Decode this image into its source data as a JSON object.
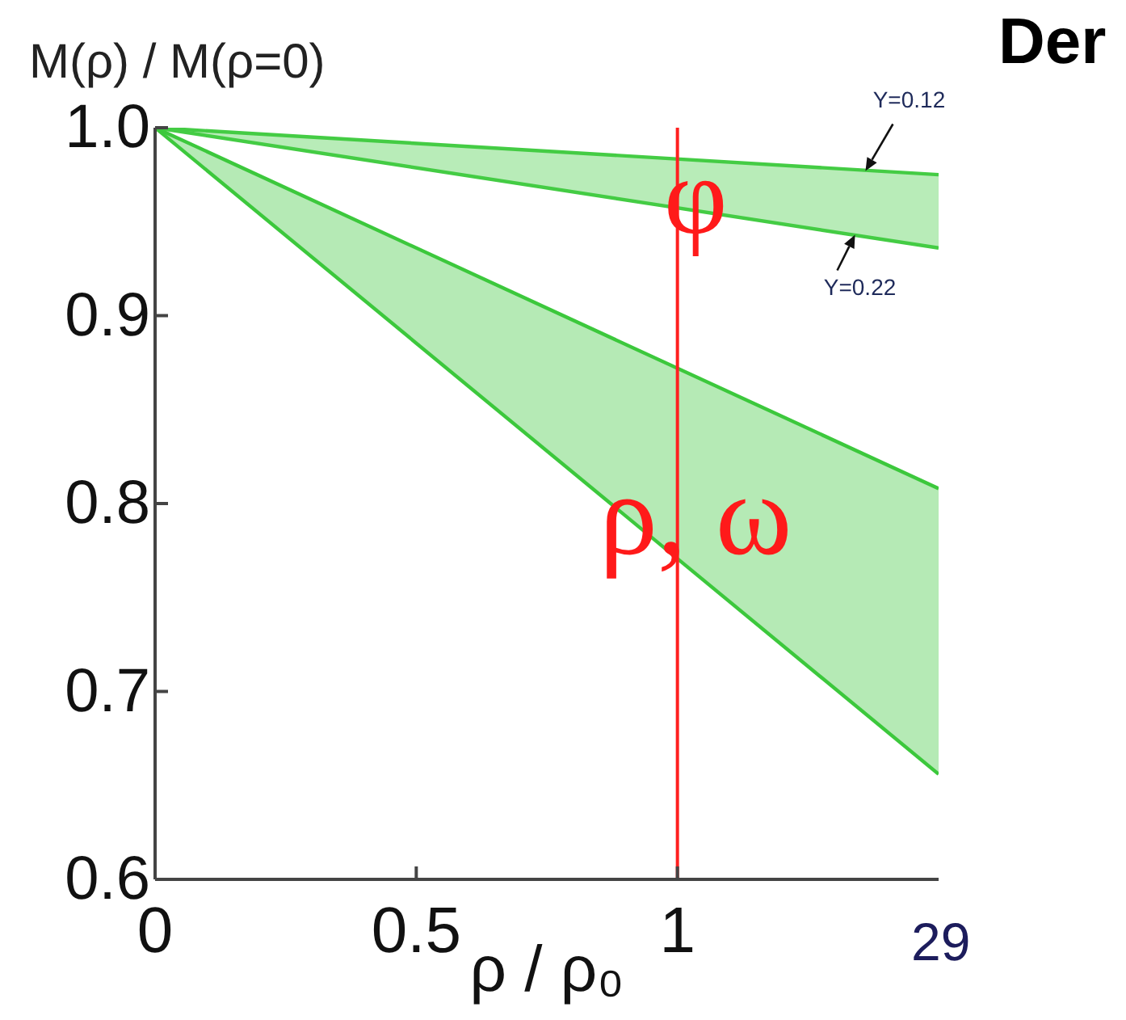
{
  "chart_data": {
    "type": "line",
    "xlabel": "ρ / ρ₀",
    "ylabel": "M(ρ) / M(ρ=0)",
    "x": [
      0,
      1.5
    ],
    "series": [
      {
        "name": "φ",
        "color": "#44cc44",
        "values": [
          1,
          0.975
        ],
        "lower": [
          1,
          0.936
        ],
        "upper": [
          1,
          0.975
        ]
      },
      {
        "color": "#44cc44",
        "values": [
          1,
          0.936
        ]
      },
      {
        "name": "ρ, ω",
        "color": "#3cc83c",
        "values": [
          1,
          0.808
        ],
        "lower": [
          1,
          0.656
        ],
        "upper": [
          1,
          0.808
        ]
      },
      {
        "color": "#3cc83c",
        "values": [
          1,
          0.656
        ]
      }
    ],
    "xlim": [
      0,
      1.5
    ],
    "xticks": [
      0,
      0.5,
      1
    ],
    "ylim": [
      0.6,
      1
    ],
    "yticks": [
      0.6,
      0.7,
      0.8,
      0.9,
      {
        "value": 1,
        "label": "1.0"
      }
    ],
    "ref_lines": [
      {
        "axis": "x",
        "value": 1,
        "color": "#ff2020"
      }
    ],
    "annotations": [
      {
        "text": "Y=0.12",
        "x": 1.36,
        "y": 0.977
      },
      {
        "text": "Y=0.22",
        "x": 1.34,
        "y": 0.943
      },
      "29",
      "Der"
    ]
  }
}
